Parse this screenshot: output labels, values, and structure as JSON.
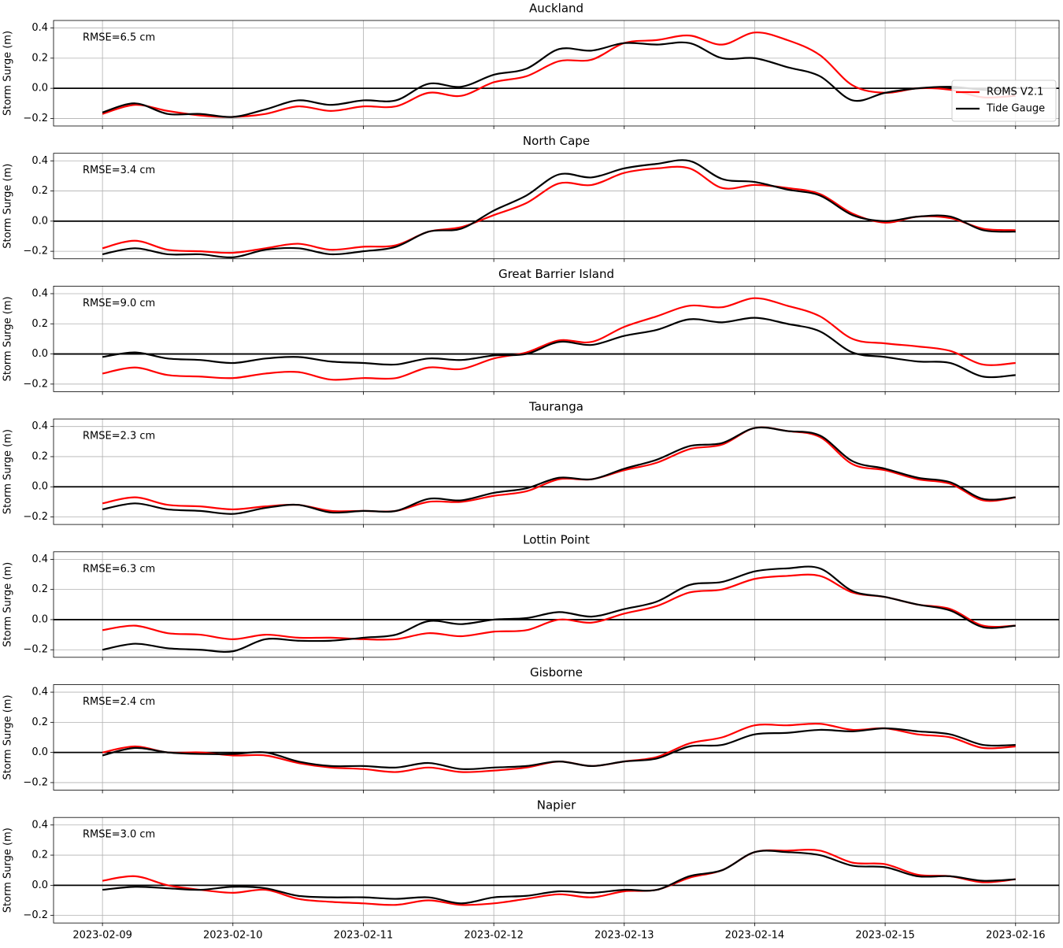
{
  "chart_data": [
    {
      "type": "line",
      "title": "Auckland",
      "ylabel": "Storm Surge (m)",
      "annotation": "RMSE=6.5 cm",
      "x": [
        "2023-02-09 00:00",
        "2023-02-09 06:00",
        "2023-02-09 12:00",
        "2023-02-09 18:00",
        "2023-02-10 00:00",
        "2023-02-10 06:00",
        "2023-02-10 12:00",
        "2023-02-10 18:00",
        "2023-02-11 00:00",
        "2023-02-11 06:00",
        "2023-02-11 12:00",
        "2023-02-11 18:00",
        "2023-02-12 00:00",
        "2023-02-12 06:00",
        "2023-02-12 12:00",
        "2023-02-12 18:00",
        "2023-02-13 00:00",
        "2023-02-13 06:00",
        "2023-02-13 12:00",
        "2023-02-13 18:00",
        "2023-02-14 00:00",
        "2023-02-14 06:00",
        "2023-02-14 12:00",
        "2023-02-14 18:00",
        "2023-02-15 00:00",
        "2023-02-15 06:00",
        "2023-02-15 12:00",
        "2023-02-15 18:00",
        "2023-02-16 00:00"
      ],
      "series": [
        {
          "name": "ROMS V2.1",
          "color": "#ff0000",
          "values": [
            -0.17,
            -0.11,
            -0.15,
            -0.18,
            -0.19,
            -0.17,
            -0.12,
            -0.15,
            -0.12,
            -0.12,
            -0.03,
            -0.05,
            0.04,
            0.08,
            0.18,
            0.19,
            0.3,
            0.32,
            0.35,
            0.29,
            0.37,
            0.32,
            0.22,
            0.02,
            -0.03,
            0.0,
            -0.01,
            -0.06,
            -0.05
          ]
        },
        {
          "name": "Tide Gauge",
          "color": "#000000",
          "values": [
            -0.16,
            -0.1,
            -0.17,
            -0.17,
            -0.19,
            -0.14,
            -0.08,
            -0.11,
            -0.08,
            -0.08,
            0.03,
            0.01,
            0.09,
            0.13,
            0.26,
            0.25,
            0.3,
            0.29,
            0.3,
            0.2,
            0.2,
            0.14,
            0.08,
            -0.08,
            -0.03,
            0.0,
            0.01,
            -0.01,
            -0.02
          ]
        }
      ],
      "xlim": [
        "2023-02-08 15:00",
        "2023-02-16 08:00"
      ],
      "ylim": [
        -0.25,
        0.45
      ],
      "yticks": [
        {
          "value": -0.2,
          "label": "−0.2"
        },
        {
          "value": 0,
          "label": "0.0"
        },
        0.2,
        0.4
      ],
      "hline": 0,
      "grid": true,
      "legend": "lower right"
    },
    {
      "type": "line",
      "title": "North Cape",
      "ylabel": "Storm Surge (m)",
      "annotation": "RMSE=3.4 cm",
      "x": [
        "2023-02-09 00:00",
        "2023-02-09 06:00",
        "2023-02-09 12:00",
        "2023-02-09 18:00",
        "2023-02-10 00:00",
        "2023-02-10 06:00",
        "2023-02-10 12:00",
        "2023-02-10 18:00",
        "2023-02-11 00:00",
        "2023-02-11 06:00",
        "2023-02-11 12:00",
        "2023-02-11 18:00",
        "2023-02-12 00:00",
        "2023-02-12 06:00",
        "2023-02-12 12:00",
        "2023-02-12 18:00",
        "2023-02-13 00:00",
        "2023-02-13 06:00",
        "2023-02-13 12:00",
        "2023-02-13 18:00",
        "2023-02-14 00:00",
        "2023-02-14 06:00",
        "2023-02-14 12:00",
        "2023-02-14 18:00",
        "2023-02-15 00:00",
        "2023-02-15 06:00",
        "2023-02-15 12:00",
        "2023-02-15 18:00",
        "2023-02-16 00:00"
      ],
      "series": [
        {
          "color": "#ff0000",
          "values": [
            -0.18,
            -0.13,
            -0.19,
            -0.2,
            -0.21,
            -0.18,
            -0.15,
            -0.19,
            -0.17,
            -0.16,
            -0.07,
            -0.04,
            0.04,
            0.12,
            0.25,
            0.24,
            0.32,
            0.35,
            0.35,
            0.22,
            0.24,
            0.22,
            0.18,
            0.05,
            -0.01,
            0.03,
            0.02,
            -0.05,
            -0.06
          ]
        },
        {
          "color": "#000000",
          "values": [
            -0.22,
            -0.18,
            -0.22,
            -0.22,
            -0.24,
            -0.19,
            -0.18,
            -0.22,
            -0.2,
            -0.17,
            -0.07,
            -0.05,
            0.07,
            0.17,
            0.31,
            0.29,
            0.35,
            0.38,
            0.4,
            0.28,
            0.26,
            0.21,
            0.17,
            0.04,
            0.0,
            0.03,
            0.03,
            -0.06,
            -0.07
          ]
        }
      ],
      "xlim": [
        "2023-02-08 15:00",
        "2023-02-16 08:00"
      ],
      "ylim": [
        -0.25,
        0.45
      ],
      "yticks": [
        {
          "value": -0.2,
          "label": "−0.2"
        },
        {
          "value": 0,
          "label": "0.0"
        },
        0.2,
        0.4
      ],
      "hline": 0,
      "grid": true
    },
    {
      "type": "line",
      "title": "Great Barrier Island",
      "ylabel": "Storm Surge (m)",
      "annotation": "RMSE=9.0 cm",
      "x": [
        "2023-02-09 00:00",
        "2023-02-09 06:00",
        "2023-02-09 12:00",
        "2023-02-09 18:00",
        "2023-02-10 00:00",
        "2023-02-10 06:00",
        "2023-02-10 12:00",
        "2023-02-10 18:00",
        "2023-02-11 00:00",
        "2023-02-11 06:00",
        "2023-02-11 12:00",
        "2023-02-11 18:00",
        "2023-02-12 00:00",
        "2023-02-12 06:00",
        "2023-02-12 12:00",
        "2023-02-12 18:00",
        "2023-02-13 00:00",
        "2023-02-13 06:00",
        "2023-02-13 12:00",
        "2023-02-13 18:00",
        "2023-02-14 00:00",
        "2023-02-14 06:00",
        "2023-02-14 12:00",
        "2023-02-14 18:00",
        "2023-02-15 00:00",
        "2023-02-15 06:00",
        "2023-02-15 12:00",
        "2023-02-15 18:00",
        "2023-02-16 00:00"
      ],
      "series": [
        {
          "color": "#ff0000",
          "values": [
            -0.13,
            -0.09,
            -0.14,
            -0.15,
            -0.16,
            -0.13,
            -0.12,
            -0.17,
            -0.16,
            -0.16,
            -0.09,
            -0.1,
            -0.03,
            0.01,
            0.09,
            0.08,
            0.18,
            0.25,
            0.32,
            0.31,
            0.37,
            0.32,
            0.25,
            0.1,
            0.07,
            0.05,
            0.02,
            -0.07,
            -0.06
          ]
        },
        {
          "color": "#000000",
          "values": [
            -0.02,
            0.01,
            -0.03,
            -0.04,
            -0.06,
            -0.03,
            -0.02,
            -0.05,
            -0.06,
            -0.07,
            -0.03,
            -0.04,
            -0.01,
            0.0,
            0.08,
            0.06,
            0.12,
            0.16,
            0.23,
            0.21,
            0.24,
            0.2,
            0.15,
            0.01,
            -0.02,
            -0.05,
            -0.06,
            -0.15,
            -0.14
          ]
        }
      ],
      "xlim": [
        "2023-02-08 15:00",
        "2023-02-16 08:00"
      ],
      "ylim": [
        -0.25,
        0.45
      ],
      "yticks": [
        {
          "value": -0.2,
          "label": "−0.2"
        },
        {
          "value": 0,
          "label": "0.0"
        },
        0.2,
        0.4
      ],
      "hline": 0,
      "grid": true
    },
    {
      "type": "line",
      "title": "Tauranga",
      "ylabel": "Storm Surge (m)",
      "annotation": "RMSE=2.3 cm",
      "x": [
        "2023-02-09 00:00",
        "2023-02-09 06:00",
        "2023-02-09 12:00",
        "2023-02-09 18:00",
        "2023-02-10 00:00",
        "2023-02-10 06:00",
        "2023-02-10 12:00",
        "2023-02-10 18:00",
        "2023-02-11 00:00",
        "2023-02-11 06:00",
        "2023-02-11 12:00",
        "2023-02-11 18:00",
        "2023-02-12 00:00",
        "2023-02-12 06:00",
        "2023-02-12 12:00",
        "2023-02-12 18:00",
        "2023-02-13 00:00",
        "2023-02-13 06:00",
        "2023-02-13 12:00",
        "2023-02-13 18:00",
        "2023-02-14 00:00",
        "2023-02-14 06:00",
        "2023-02-14 12:00",
        "2023-02-14 18:00",
        "2023-02-15 00:00",
        "2023-02-15 06:00",
        "2023-02-15 12:00",
        "2023-02-15 18:00",
        "2023-02-16 00:00"
      ],
      "series": [
        {
          "color": "#ff0000",
          "values": [
            -0.11,
            -0.07,
            -0.12,
            -0.13,
            -0.15,
            -0.13,
            -0.12,
            -0.16,
            -0.16,
            -0.16,
            -0.1,
            -0.1,
            -0.06,
            -0.03,
            0.05,
            0.05,
            0.11,
            0.16,
            0.25,
            0.28,
            0.39,
            0.37,
            0.33,
            0.15,
            0.11,
            0.05,
            0.02,
            -0.09,
            -0.07
          ]
        },
        {
          "color": "#000000",
          "values": [
            -0.15,
            -0.11,
            -0.15,
            -0.16,
            -0.18,
            -0.14,
            -0.12,
            -0.17,
            -0.16,
            -0.16,
            -0.08,
            -0.09,
            -0.04,
            -0.01,
            0.06,
            0.05,
            0.12,
            0.18,
            0.27,
            0.29,
            0.39,
            0.37,
            0.34,
            0.17,
            0.12,
            0.06,
            0.03,
            -0.08,
            -0.07
          ]
        }
      ],
      "xlim": [
        "2023-02-08 15:00",
        "2023-02-16 08:00"
      ],
      "ylim": [
        -0.25,
        0.45
      ],
      "yticks": [
        {
          "value": -0.2,
          "label": "−0.2"
        },
        {
          "value": 0,
          "label": "0.0"
        },
        0.2,
        0.4
      ],
      "hline": 0,
      "grid": true
    },
    {
      "type": "line",
      "title": "Lottin Point",
      "ylabel": "Storm Surge (m)",
      "annotation": "RMSE=6.3 cm",
      "x": [
        "2023-02-09 00:00",
        "2023-02-09 06:00",
        "2023-02-09 12:00",
        "2023-02-09 18:00",
        "2023-02-10 00:00",
        "2023-02-10 06:00",
        "2023-02-10 12:00",
        "2023-02-10 18:00",
        "2023-02-11 00:00",
        "2023-02-11 06:00",
        "2023-02-11 12:00",
        "2023-02-11 18:00",
        "2023-02-12 00:00",
        "2023-02-12 06:00",
        "2023-02-12 12:00",
        "2023-02-12 18:00",
        "2023-02-13 00:00",
        "2023-02-13 06:00",
        "2023-02-13 12:00",
        "2023-02-13 18:00",
        "2023-02-14 00:00",
        "2023-02-14 06:00",
        "2023-02-14 12:00",
        "2023-02-14 18:00",
        "2023-02-15 00:00",
        "2023-02-15 06:00",
        "2023-02-15 12:00",
        "2023-02-15 18:00",
        "2023-02-16 00:00"
      ],
      "series": [
        {
          "color": "#ff0000",
          "values": [
            -0.07,
            -0.04,
            -0.09,
            -0.1,
            -0.13,
            -0.1,
            -0.12,
            -0.12,
            -0.13,
            -0.13,
            -0.09,
            -0.11,
            -0.08,
            -0.07,
            0.0,
            -0.02,
            0.04,
            0.09,
            0.18,
            0.2,
            0.27,
            0.29,
            0.29,
            0.18,
            0.15,
            0.1,
            0.07,
            -0.04,
            -0.04
          ]
        },
        {
          "color": "#000000",
          "values": [
            -0.2,
            -0.16,
            -0.19,
            -0.2,
            -0.21,
            -0.13,
            -0.14,
            -0.14,
            -0.12,
            -0.1,
            -0.01,
            -0.03,
            0.0,
            0.01,
            0.05,
            0.02,
            0.07,
            0.12,
            0.23,
            0.25,
            0.32,
            0.34,
            0.34,
            0.19,
            0.15,
            0.1,
            0.06,
            -0.05,
            -0.04
          ]
        }
      ],
      "xlim": [
        "2023-02-08 15:00",
        "2023-02-16 08:00"
      ],
      "ylim": [
        -0.25,
        0.45
      ],
      "yticks": [
        {
          "value": -0.2,
          "label": "−0.2"
        },
        {
          "value": 0,
          "label": "0.0"
        },
        0.2,
        0.4
      ],
      "hline": 0,
      "grid": true
    },
    {
      "type": "line",
      "title": "Gisborne",
      "ylabel": "Storm Surge (m)",
      "annotation": "RMSE=2.4 cm",
      "x": [
        "2023-02-09 00:00",
        "2023-02-09 06:00",
        "2023-02-09 12:00",
        "2023-02-09 18:00",
        "2023-02-10 00:00",
        "2023-02-10 06:00",
        "2023-02-10 12:00",
        "2023-02-10 18:00",
        "2023-02-11 00:00",
        "2023-02-11 06:00",
        "2023-02-11 12:00",
        "2023-02-11 18:00",
        "2023-02-12 00:00",
        "2023-02-12 06:00",
        "2023-02-12 12:00",
        "2023-02-12 18:00",
        "2023-02-13 00:00",
        "2023-02-13 06:00",
        "2023-02-13 12:00",
        "2023-02-13 18:00",
        "2023-02-14 00:00",
        "2023-02-14 06:00",
        "2023-02-14 12:00",
        "2023-02-14 18:00",
        "2023-02-15 00:00",
        "2023-02-15 06:00",
        "2023-02-15 12:00",
        "2023-02-15 18:00",
        "2023-02-16 00:00"
      ],
      "series": [
        {
          "color": "#ff0000",
          "values": [
            0.0,
            0.04,
            0.0,
            0.0,
            -0.02,
            -0.02,
            -0.07,
            -0.1,
            -0.11,
            -0.13,
            -0.1,
            -0.13,
            -0.12,
            -0.1,
            -0.06,
            -0.09,
            -0.06,
            -0.03,
            0.06,
            0.1,
            0.18,
            0.18,
            0.19,
            0.15,
            0.16,
            0.12,
            0.1,
            0.03,
            0.04
          ]
        },
        {
          "color": "#000000",
          "values": [
            -0.02,
            0.03,
            0.0,
            -0.01,
            -0.01,
            0.0,
            -0.06,
            -0.09,
            -0.09,
            -0.1,
            -0.07,
            -0.11,
            -0.1,
            -0.09,
            -0.06,
            -0.09,
            -0.06,
            -0.04,
            0.04,
            0.05,
            0.12,
            0.13,
            0.15,
            0.14,
            0.16,
            0.14,
            0.12,
            0.05,
            0.05
          ]
        }
      ],
      "xlim": [
        "2023-02-08 15:00",
        "2023-02-16 08:00"
      ],
      "ylim": [
        -0.25,
        0.45
      ],
      "yticks": [
        {
          "value": -0.2,
          "label": "−0.2"
        },
        {
          "value": 0,
          "label": "0.0"
        },
        0.2,
        0.4
      ],
      "hline": 0,
      "grid": true
    },
    {
      "type": "line",
      "title": "Napier",
      "ylabel": "Storm Surge (m)",
      "annotation": "RMSE=3.0 cm",
      "x": [
        "2023-02-09 00:00",
        "2023-02-09 06:00",
        "2023-02-09 12:00",
        "2023-02-09 18:00",
        "2023-02-10 00:00",
        "2023-02-10 06:00",
        "2023-02-10 12:00",
        "2023-02-10 18:00",
        "2023-02-11 00:00",
        "2023-02-11 06:00",
        "2023-02-11 12:00",
        "2023-02-11 18:00",
        "2023-02-12 00:00",
        "2023-02-12 06:00",
        "2023-02-12 12:00",
        "2023-02-12 18:00",
        "2023-02-13 00:00",
        "2023-02-13 06:00",
        "2023-02-13 12:00",
        "2023-02-13 18:00",
        "2023-02-14 00:00",
        "2023-02-14 06:00",
        "2023-02-14 12:00",
        "2023-02-14 18:00",
        "2023-02-15 00:00",
        "2023-02-15 06:00",
        "2023-02-15 12:00",
        "2023-02-15 18:00",
        "2023-02-16 00:00"
      ],
      "series": [
        {
          "color": "#ff0000",
          "values": [
            0.03,
            0.06,
            0.0,
            -0.03,
            -0.05,
            -0.03,
            -0.09,
            -0.11,
            -0.12,
            -0.13,
            -0.1,
            -0.13,
            -0.12,
            -0.09,
            -0.06,
            -0.08,
            -0.04,
            -0.03,
            0.05,
            0.1,
            0.22,
            0.23,
            0.23,
            0.15,
            0.14,
            0.07,
            0.06,
            0.02,
            0.04
          ]
        },
        {
          "color": "#000000",
          "values": [
            -0.03,
            -0.01,
            -0.02,
            -0.03,
            -0.01,
            -0.02,
            -0.07,
            -0.08,
            -0.08,
            -0.09,
            -0.08,
            -0.12,
            -0.08,
            -0.07,
            -0.04,
            -0.05,
            -0.03,
            -0.03,
            0.06,
            0.1,
            0.22,
            0.22,
            0.2,
            0.13,
            0.12,
            0.06,
            0.06,
            0.03,
            0.04
          ]
        }
      ],
      "xlim": [
        "2023-02-08 15:00",
        "2023-02-16 08:00"
      ],
      "ylim": [
        -0.25,
        0.45
      ],
      "xticks": [
        "2023-02-09",
        "2023-02-10",
        "2023-02-11",
        "2023-02-12",
        "2023-02-13",
        "2023-02-14",
        "2023-02-15",
        "2023-02-16"
      ],
      "yticks": [
        {
          "value": -0.2,
          "label": "−0.2"
        },
        {
          "value": 0,
          "label": "0.0"
        },
        0.2,
        0.4
      ],
      "hline": 0,
      "grid": true
    }
  ]
}
